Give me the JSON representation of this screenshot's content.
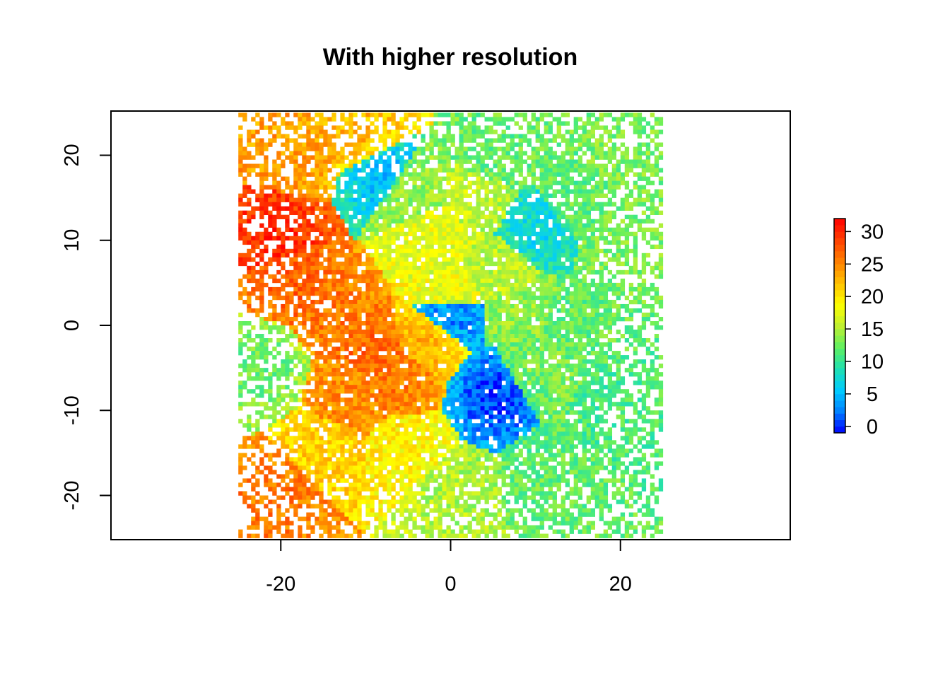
{
  "chart_data": {
    "type": "heatmap",
    "title": "With higher resolution",
    "xlabel": "",
    "ylabel": "",
    "xlim": [
      -40,
      40
    ],
    "ylim": [
      -25.2,
      25.2
    ],
    "raster_extent": {
      "x": [
        -25,
        25
      ],
      "y": [
        -25,
        25
      ]
    },
    "x_ticks": [
      -20,
      0,
      20
    ],
    "y_ticks": [
      -20,
      -10,
      0,
      10,
      20
    ],
    "colorbar": {
      "range": [
        -1,
        32
      ],
      "ticks": [
        0,
        5,
        10,
        15,
        20,
        25,
        30
      ],
      "palette": [
        "#0000ff",
        "#0080ff",
        "#00ccff",
        "#20e0b0",
        "#60f060",
        "#c0f030",
        "#ffff00",
        "#ffc000",
        "#ff8000",
        "#ff4000",
        "#ff0000"
      ]
    },
    "regions": [
      {
        "x": 0,
        "y": 3,
        "value": 20
      },
      {
        "x": -2,
        "y": 10,
        "value": 18
      },
      {
        "x": 3,
        "y": 15,
        "value": 16
      },
      {
        "x": -5,
        "y": 16,
        "value": 14
      },
      {
        "x": 6,
        "y": 6,
        "value": 16
      },
      {
        "x": -9,
        "y": -3,
        "value": 27
      },
      {
        "x": -14,
        "y": 2,
        "value": 26
      },
      {
        "x": -18,
        "y": 5,
        "value": 27
      },
      {
        "x": -20,
        "y": 11,
        "value": 30
      },
      {
        "x": -6,
        "y": -6,
        "value": 26
      },
      {
        "x": -3,
        "y": -2,
        "value": 23
      },
      {
        "x": -12,
        "y": -8,
        "value": 25
      },
      {
        "x": -20,
        "y": -20,
        "value": 26
      },
      {
        "x": -18,
        "y": 20,
        "value": 24
      },
      {
        "x": -10,
        "y": 22,
        "value": 23
      },
      {
        "x": 10,
        "y": 11,
        "value": 7
      },
      {
        "x": -8,
        "y": 18,
        "value": 4
      },
      {
        "x": 0,
        "y": 2,
        "value": 0
      },
      {
        "x": 5,
        "y": -8,
        "value": 0
      },
      {
        "x": 15,
        "y": 15,
        "value": 12
      },
      {
        "x": 20,
        "y": 10,
        "value": 13
      },
      {
        "x": 15,
        "y": 0,
        "value": 12
      },
      {
        "x": 20,
        "y": -10,
        "value": 11
      },
      {
        "x": 12,
        "y": -18,
        "value": 12
      },
      {
        "x": 0,
        "y": -20,
        "value": 15
      },
      {
        "x": -5,
        "y": -15,
        "value": 19
      },
      {
        "x": 20,
        "y": 20,
        "value": 13
      },
      {
        "x": -22,
        "y": -5,
        "value": 12
      },
      {
        "x": 10,
        "y": -5,
        "value": 13
      },
      {
        "x": 5,
        "y": 20,
        "value": 12
      },
      {
        "x": -15,
        "y": -15,
        "value": 21
      },
      {
        "x": 8,
        "y": 2,
        "value": 14
      }
    ]
  }
}
